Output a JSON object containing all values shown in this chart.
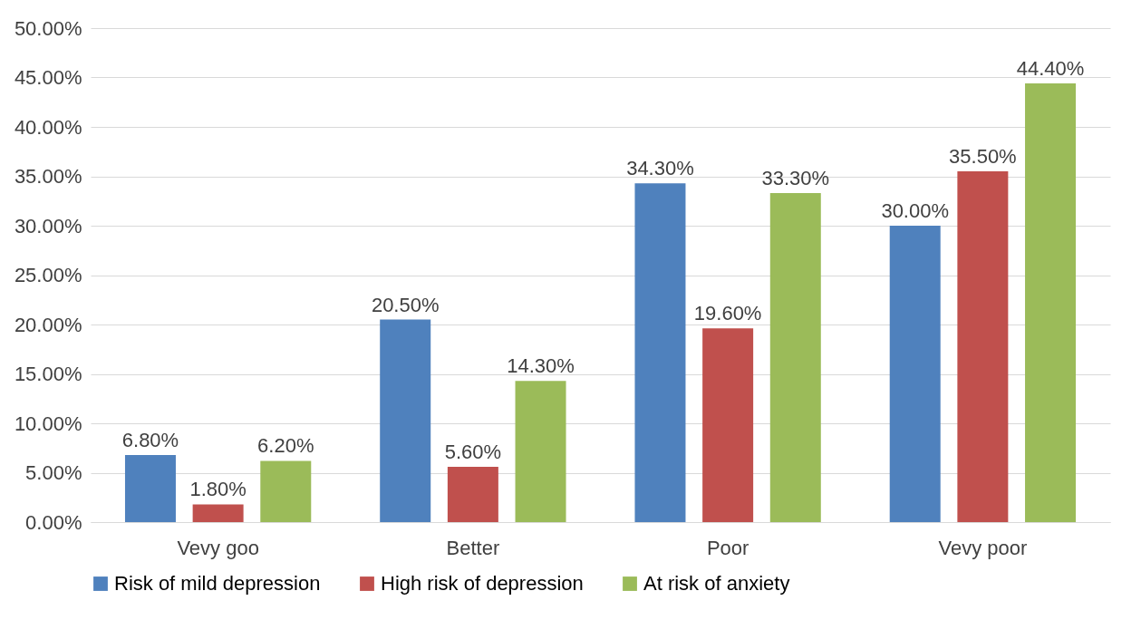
{
  "chart_data": {
    "type": "bar",
    "categories": [
      "Vevy goo",
      "Better",
      "Poor",
      "Vevy poor"
    ],
    "series": [
      {
        "name": "Risk of mild depression",
        "color": "#4f81bd",
        "values": [
          6.8,
          20.5,
          34.3,
          30.0
        ],
        "value_labels": [
          "6.80%",
          "20.50%",
          "34.30%",
          "30.00%"
        ]
      },
      {
        "name": "High risk of depression",
        "color": "#c0504d",
        "values": [
          1.8,
          5.6,
          19.6,
          35.5
        ],
        "value_labels": [
          "1.80%",
          "5.60%",
          "19.60%",
          "35.50%"
        ]
      },
      {
        "name": "At risk of anxiety",
        "color": "#9bbb59",
        "values": [
          6.2,
          14.3,
          33.3,
          44.4
        ],
        "value_labels": [
          "6.20%",
          "14.30%",
          "33.30%",
          "44.40%"
        ]
      }
    ],
    "ylim": [
      0,
      50
    ],
    "yticks": [
      {
        "value": 0,
        "label": "0.00%"
      },
      {
        "value": 5,
        "label": "5.00%"
      },
      {
        "value": 10,
        "label": "10.00%"
      },
      {
        "value": 15,
        "label": "15.00%"
      },
      {
        "value": 20,
        "label": "20.00%"
      },
      {
        "value": 25,
        "label": "25.00%"
      },
      {
        "value": 30,
        "label": "30.00%"
      },
      {
        "value": 35,
        "label": "35.00%"
      },
      {
        "value": 40,
        "label": "40.00%"
      },
      {
        "value": 45,
        "label": "45.00%"
      },
      {
        "value": 50,
        "label": "50.00%"
      }
    ],
    "grid": "y",
    "legend": "bottom"
  }
}
